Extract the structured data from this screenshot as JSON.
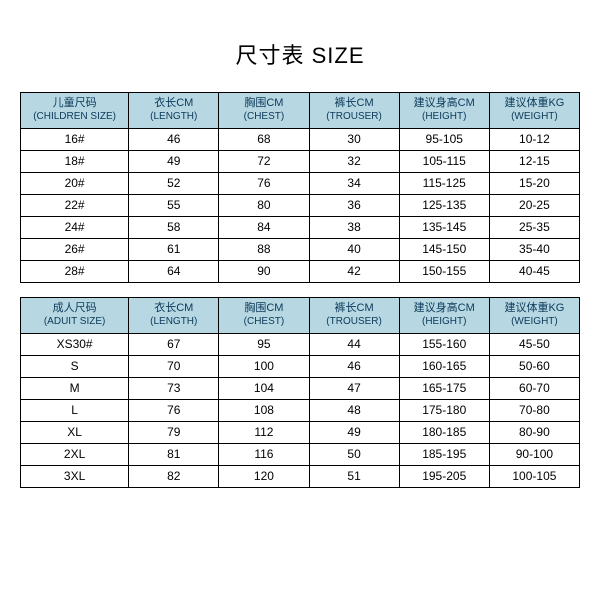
{
  "title": "尺寸表 SIZE",
  "colors": {
    "header_bg": "#b7d7e2",
    "header_text": "#0b3a5a",
    "border": "#000000",
    "background": "#ffffff",
    "cell_text": "#000000"
  },
  "children_table": {
    "headers": [
      {
        "cn": "儿童尺码",
        "en": "(CHILDREN SIZE)"
      },
      {
        "cn": "衣长CM",
        "en": "(LENGTH)"
      },
      {
        "cn": "胸围CM",
        "en": "(CHEST)"
      },
      {
        "cn": "裤长CM",
        "en": "(TROUSER)"
      },
      {
        "cn": "建议身高CM",
        "en": "(HEIGHT)"
      },
      {
        "cn": "建议体重KG",
        "en": "(WEIGHT)"
      }
    ],
    "rows": [
      [
        "16#",
        "46",
        "68",
        "30",
        "95-105",
        "10-12"
      ],
      [
        "18#",
        "49",
        "72",
        "32",
        "105-115",
        "12-15"
      ],
      [
        "20#",
        "52",
        "76",
        "34",
        "115-125",
        "15-20"
      ],
      [
        "22#",
        "55",
        "80",
        "36",
        "125-135",
        "20-25"
      ],
      [
        "24#",
        "58",
        "84",
        "38",
        "135-145",
        "25-35"
      ],
      [
        "26#",
        "61",
        "88",
        "40",
        "145-150",
        "35-40"
      ],
      [
        "28#",
        "64",
        "90",
        "42",
        "150-155",
        "40-45"
      ]
    ]
  },
  "adult_table": {
    "headers": [
      {
        "cn": "成人尺码",
        "en": "(ADUIT SIZE)"
      },
      {
        "cn": "衣长CM",
        "en": "(LENGTH)"
      },
      {
        "cn": "胸围CM",
        "en": "(CHEST)"
      },
      {
        "cn": "裤长CM",
        "en": "(TROUSER)"
      },
      {
        "cn": "建议身高CM",
        "en": "(HEIGHT)"
      },
      {
        "cn": "建议体重KG",
        "en": "(WEIGHT)"
      }
    ],
    "rows": [
      [
        "XS30#",
        "67",
        "95",
        "44",
        "155-160",
        "45-50"
      ],
      [
        "S",
        "70",
        "100",
        "46",
        "160-165",
        "50-60"
      ],
      [
        "M",
        "73",
        "104",
        "47",
        "165-175",
        "60-70"
      ],
      [
        "L",
        "76",
        "108",
        "48",
        "175-180",
        "70-80"
      ],
      [
        "XL",
        "79",
        "112",
        "49",
        "180-185",
        "80-90"
      ],
      [
        "2XL",
        "81",
        "116",
        "50",
        "185-195",
        "90-100"
      ],
      [
        "3XL",
        "82",
        "120",
        "51",
        "195-205",
        "100-105"
      ]
    ]
  }
}
